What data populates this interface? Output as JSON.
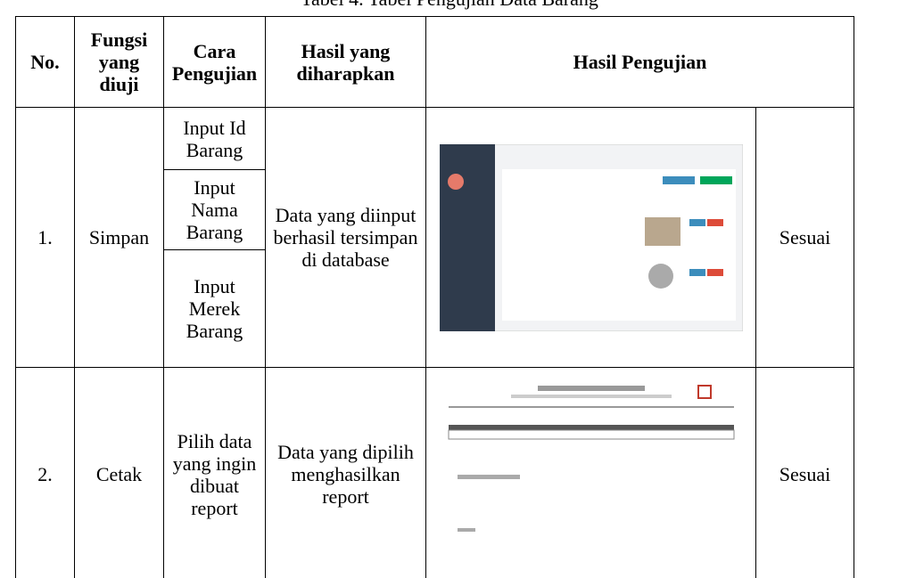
{
  "caption": "Tabel 4. Tabel Pengujian Data Barang",
  "headers": [
    "No.",
    "Fungsi yang diuji",
    "Cara Pengujian",
    "Hasil yang diharapkan",
    "Hasil Pengujian"
  ],
  "rows": [
    {
      "no": "1.",
      "fungsi": "Simpan",
      "cara": [
        "Input Id Barang",
        "Input Nama Barang",
        "Input Merek Barang"
      ],
      "harapan": "Data yang diinput berhasil tersimpan di database",
      "hasil": "Sesuai"
    },
    {
      "no": "2.",
      "fungsi": "Cetak",
      "cara": [
        "Pilih data yang ingin dibuat report"
      ],
      "harapan": "Data yang dipilih menghasilkan report",
      "hasil": "Sesuai"
    }
  ]
}
